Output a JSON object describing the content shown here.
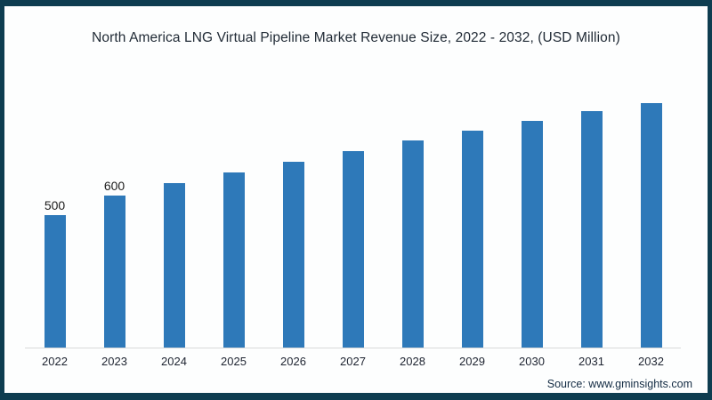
{
  "chart_data": {
    "type": "bar",
    "title": "North America LNG Virtual Pipeline Market Revenue Size, 2022 - 2032, (USD Million)",
    "categories": [
      "2022",
      "2023",
      "2024",
      "2025",
      "2026",
      "2027",
      "2028",
      "2029",
      "2030",
      "2031",
      "2032"
    ],
    "values": [
      500,
      600,
      665,
      720,
      775,
      830,
      885,
      935,
      985,
      1035,
      1075
    ],
    "data_labels": [
      {
        "category": "2022",
        "text": "500"
      },
      {
        "category": "2023",
        "text": "600"
      }
    ],
    "xlabel": "",
    "ylabel": "",
    "ylim": [
      -175,
      1170
    ],
    "grid": false,
    "y_axis_visible": false,
    "legend": "none",
    "bar_color": "#2e79b9",
    "axis_line_color": "#d9d9d9"
  },
  "footer": {
    "source": "Source: www.gminsights.com"
  },
  "frame": {
    "border_color": "#0e3d50",
    "background": "#fdfefe"
  }
}
